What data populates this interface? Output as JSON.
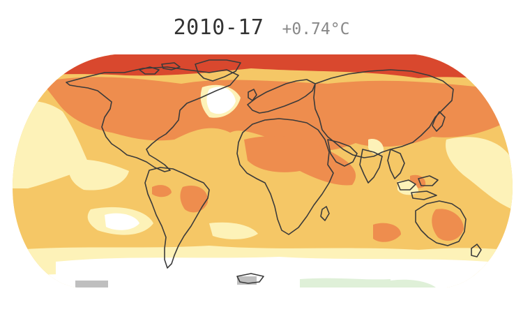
{
  "header": {
    "period": "2010-17",
    "anomaly": "+0.74°C"
  },
  "map": {
    "projection": "robinson",
    "palette": {
      "extreme": "#d9482e",
      "hot": "#ee8d4e",
      "warm": "#f5c766",
      "mild": "#fdf2b8",
      "neutral": "#ffffff",
      "cool": "#dff0d8",
      "nodata": "#bfbfbf",
      "coastline": "#3a3a3a"
    }
  }
}
